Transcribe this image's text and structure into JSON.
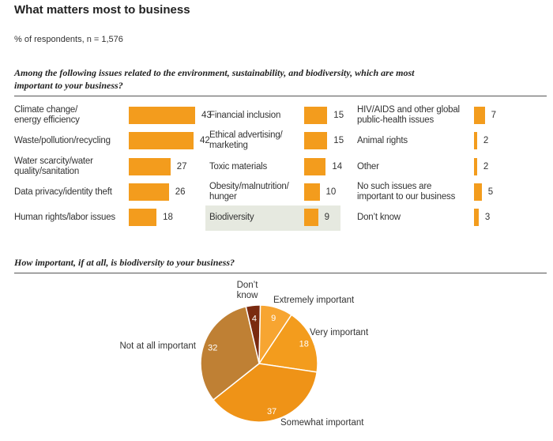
{
  "title": "What matters most to business",
  "subtitle": "% of respondents, n = 1,576",
  "question1": "Among the following issues related to the environment, sustainability, and biodiversity, which are most important to your business?",
  "question2": "How important, if at all, is biodiversity to your business?",
  "colors": {
    "bar": "#f39c1d",
    "highlight": "#e6e9e0"
  },
  "chart_data": [
    {
      "type": "bar",
      "orientation": "horizontal",
      "title": "Among the following issues related to the environment, sustainability, and biodiversity, which are most important to your business?",
      "categories": [
        "Climate change/ energy efficiency",
        "Waste/pollution/recycling",
        "Water scarcity/water quality/sanitation",
        "Data privacy/identity theft",
        "Human rights/labor issues",
        "Financial inclusion",
        "Ethical advertising/ marketing",
        "Toxic materials",
        "Obesity/malnutrition/ hunger",
        "Biodiversity",
        "HIV/AIDS and other global public-health issues",
        "Animal rights",
        "Other",
        "No such issues are important to our business",
        "Don’t know"
      ],
      "values": [
        43,
        42,
        27,
        26,
        18,
        15,
        15,
        14,
        10,
        9,
        7,
        2,
        2,
        5,
        3
      ],
      "xlim": [
        0,
        43
      ],
      "highlighted": "Biodiversity",
      "columns": [
        [
          {
            "label": "Climate change/\nenergy efficiency",
            "value": 43
          },
          {
            "label": "Waste/pollution/recycling",
            "value": 42
          },
          {
            "label": "Water scarcity/water\nquality/sanitation",
            "value": 27
          },
          {
            "label": "Data privacy/identity theft",
            "value": 26
          },
          {
            "label": "Human rights/labor issues",
            "value": 18
          }
        ],
        [
          {
            "label": "Financial inclusion",
            "value": 15
          },
          {
            "label": "Ethical advertising/\nmarketing",
            "value": 15
          },
          {
            "label": "Toxic materials",
            "value": 14
          },
          {
            "label": "Obesity/malnutrition/\nhunger",
            "value": 10
          },
          {
            "label": "Biodiversity",
            "value": 9
          }
        ],
        [
          {
            "label": "HIV/AIDS and other global\npublic-health issues",
            "value": 7
          },
          {
            "label": "Animal rights",
            "value": 2
          },
          {
            "label": "Other",
            "value": 2
          },
          {
            "label": "No such issues are\nimportant to our business",
            "value": 5
          },
          {
            "label": "Don’t know",
            "value": 3
          }
        ]
      ]
    },
    {
      "type": "pie",
      "title": "How important, if at all, is biodiversity to your business?",
      "slices": [
        {
          "label": "Don’t know",
          "value": 4,
          "color": "#7a2a10"
        },
        {
          "label": "Extremely important",
          "value": 9,
          "color": "#f7a531"
        },
        {
          "label": "Very important",
          "value": 18,
          "color": "#f39c1d"
        },
        {
          "label": "Somewhat important",
          "value": 37,
          "color": "#ef9317"
        },
        {
          "label": "Not at all important",
          "value": 32,
          "color": "#bf8034"
        }
      ]
    }
  ]
}
